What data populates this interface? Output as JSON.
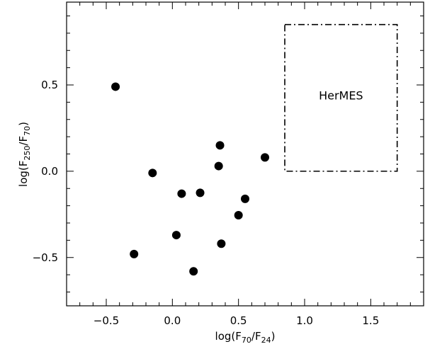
{
  "chart_data": {
    "type": "scatter",
    "xlabel": {
      "prefix": "log(F",
      "sub1": "70",
      "mid": "/F",
      "sub2": "24",
      "suffix": ")"
    },
    "ylabel": {
      "prefix": "log(F",
      "sub1": "250",
      "mid": "/F",
      "sub2": "70",
      "suffix": ")"
    },
    "xlim": [
      -0.8,
      1.9
    ],
    "ylim": [
      -0.78,
      0.98
    ],
    "x_ticks": [
      -0.5,
      0.0,
      0.5,
      1.0,
      1.5
    ],
    "x_tick_labels": [
      "−0.5",
      "0.0",
      "0.5",
      "1.0",
      "1.5"
    ],
    "y_ticks": [
      -0.5,
      0.0,
      0.5
    ],
    "y_tick_labels": [
      "−0.5",
      "0.0",
      "0.5"
    ],
    "grid": false,
    "points": [
      {
        "x": -0.43,
        "y": 0.49
      },
      {
        "x": -0.15,
        "y": -0.01
      },
      {
        "x": -0.29,
        "y": -0.48
      },
      {
        "x": 0.03,
        "y": -0.37
      },
      {
        "x": 0.07,
        "y": -0.13
      },
      {
        "x": 0.21,
        "y": -0.125
      },
      {
        "x": 0.16,
        "y": -0.58
      },
      {
        "x": 0.35,
        "y": 0.03
      },
      {
        "x": 0.36,
        "y": 0.15
      },
      {
        "x": 0.37,
        "y": -0.42
      },
      {
        "x": 0.5,
        "y": -0.255
      },
      {
        "x": 0.55,
        "y": -0.16
      },
      {
        "x": 0.7,
        "y": 0.08
      }
    ],
    "region": {
      "label": "HerMES",
      "x": [
        0.85,
        1.7
      ],
      "y": [
        0.0,
        0.85
      ]
    }
  }
}
